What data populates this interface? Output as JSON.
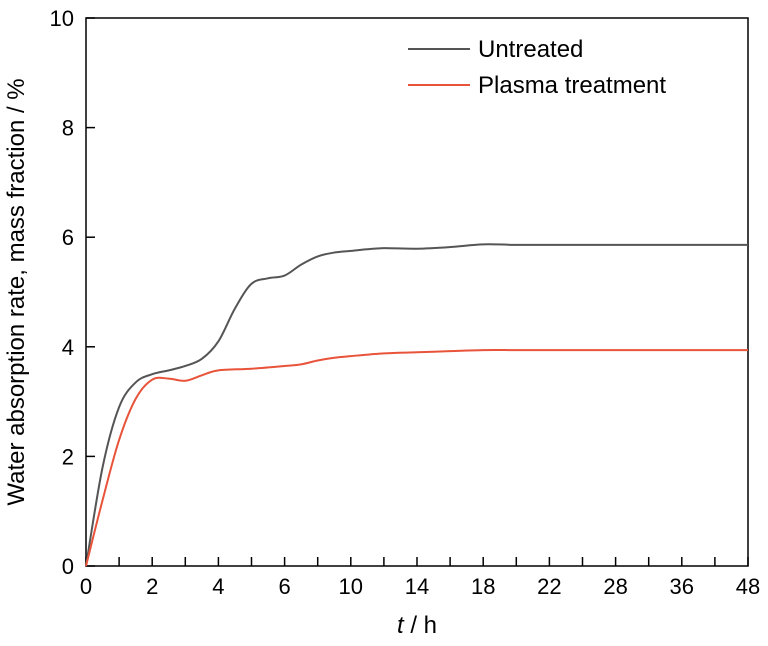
{
  "chart_data": {
    "type": "line",
    "title": "",
    "xlabel_var": "t",
    "xlabel_unit": " / h",
    "ylabel": "Water absorption rate, mass fraction / %",
    "x_tick_labels": [
      "0",
      "2",
      "4",
      "6",
      "10",
      "14",
      "18",
      "22",
      "28",
      "36",
      "48"
    ],
    "x_minor_tick_count": 21,
    "ylim": [
      0,
      10
    ],
    "y_ticks": [
      "0",
      "2",
      "4",
      "6",
      "8",
      "10"
    ],
    "grid": false,
    "legend_position": "top-right",
    "series": [
      {
        "name": "Untreated",
        "color": "#555555",
        "points": [
          [
            0,
            0
          ],
          [
            0.5,
            1.8
          ],
          [
            1,
            2.9
          ],
          [
            1.5,
            3.35
          ],
          [
            2,
            3.5
          ],
          [
            2.5,
            3.57
          ],
          [
            3,
            3.65
          ],
          [
            3.5,
            3.78
          ],
          [
            4,
            4.1
          ],
          [
            4.5,
            4.7
          ],
          [
            5,
            5.15
          ],
          [
            5.5,
            5.25
          ],
          [
            6,
            5.3
          ],
          [
            7,
            5.5
          ],
          [
            8,
            5.65
          ],
          [
            9,
            5.72
          ],
          [
            10,
            5.75
          ],
          [
            11,
            5.78
          ],
          [
            12,
            5.8
          ],
          [
            14,
            5.79
          ],
          [
            16,
            5.82
          ],
          [
            18,
            5.87
          ],
          [
            20,
            5.86
          ],
          [
            22,
            5.86
          ],
          [
            28,
            5.86
          ],
          [
            36,
            5.86
          ],
          [
            48,
            5.86
          ]
        ]
      },
      {
        "name": "Plasma treatment",
        "color": "#e8533a",
        "points": [
          [
            0,
            0
          ],
          [
            0.5,
            1.2
          ],
          [
            1,
            2.3
          ],
          [
            1.5,
            3.05
          ],
          [
            2,
            3.4
          ],
          [
            2.5,
            3.42
          ],
          [
            3,
            3.38
          ],
          [
            3.5,
            3.48
          ],
          [
            4,
            3.57
          ],
          [
            5,
            3.6
          ],
          [
            6,
            3.65
          ],
          [
            7,
            3.68
          ],
          [
            8,
            3.75
          ],
          [
            9,
            3.8
          ],
          [
            10,
            3.83
          ],
          [
            12,
            3.88
          ],
          [
            14,
            3.9
          ],
          [
            16,
            3.92
          ],
          [
            18,
            3.94
          ],
          [
            20,
            3.94
          ],
          [
            22,
            3.94
          ],
          [
            28,
            3.94
          ],
          [
            36,
            3.94
          ],
          [
            48,
            3.94
          ]
        ]
      }
    ]
  }
}
